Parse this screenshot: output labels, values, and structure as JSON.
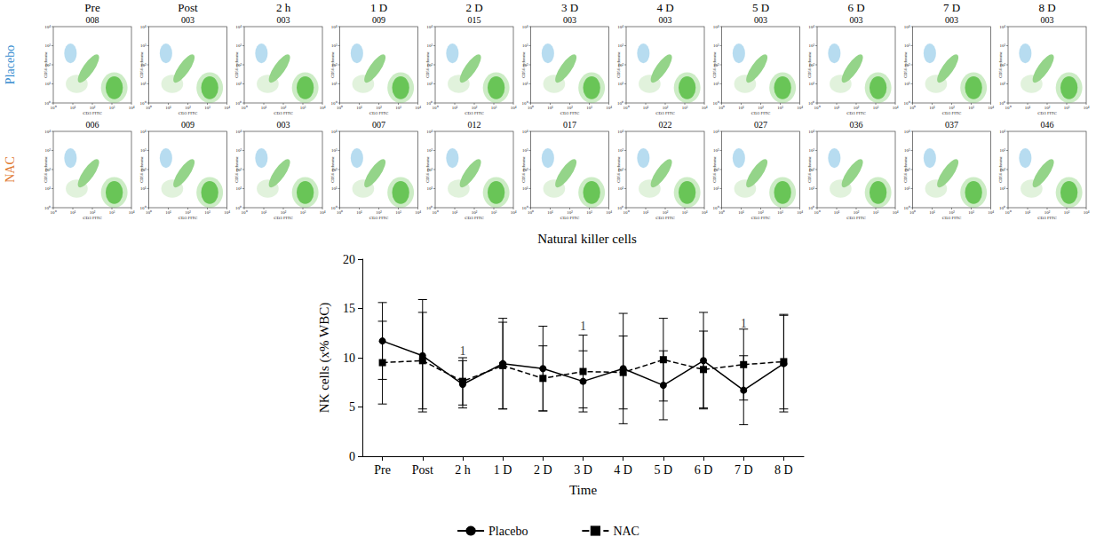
{
  "flow_panels": {
    "columns": [
      "Pre",
      "Post",
      "2 h",
      "1 D",
      "2 D",
      "3 D",
      "4 D",
      "5 D",
      "6 D",
      "7 D",
      "8 D"
    ],
    "rows": [
      {
        "label": "Placebo",
        "color": "#3b8fd0",
        "ids": [
          "008",
          "003",
          "003",
          "009",
          "015",
          "003",
          "003",
          "003",
          "003",
          "003",
          "003"
        ]
      },
      {
        "label": "NAC",
        "color": "#e0782e",
        "ids": [
          "006",
          "009",
          "003",
          "007",
          "012",
          "017",
          "022",
          "027",
          "036",
          "037",
          "046"
        ]
      }
    ],
    "x_axis_label": "CD3 FITC",
    "y_axis_label": "CD56 cychrome",
    "tick_labels_text": [
      "10⁰",
      "10¹",
      "10²",
      "10³",
      "10⁴"
    ]
  },
  "chart_data": {
    "type": "line",
    "title": "Natural killer cells",
    "x_label": "Time",
    "y_label": "NK cells (x% WBC)",
    "categories": [
      "Pre",
      "Post",
      "2 h",
      "1 D",
      "2 D",
      "3 D",
      "4 D",
      "5 D",
      "6 D",
      "7 D",
      "8 D"
    ],
    "series": [
      {
        "name": "Placebo",
        "color": "#000000",
        "marker": "circle",
        "line_style": "solid",
        "values": [
          11.7,
          10.2,
          7.3,
          9.4,
          8.9,
          7.6,
          8.9,
          7.2,
          9.7,
          6.7,
          9.4
        ],
        "errors": [
          3.9,
          5.7,
          2.4,
          4.6,
          4.3,
          3.1,
          5.6,
          3.5,
          4.9,
          3.5,
          4.9
        ]
      },
      {
        "name": "NAC",
        "color": "#000000",
        "marker": "square",
        "line_style": "dashed",
        "values": [
          9.5,
          9.7,
          7.6,
          9.2,
          7.9,
          8.6,
          8.5,
          9.8,
          8.8,
          9.3,
          9.6
        ],
        "errors": [
          4.2,
          4.9,
          2.4,
          4.4,
          3.3,
          3.7,
          3.7,
          4.2,
          3.9,
          3.6,
          4.8
        ]
      }
    ],
    "annotations": [
      {
        "x": "2 h",
        "y": 10.7,
        "text": "1"
      },
      {
        "x": "3 D",
        "y": 13.2,
        "text": "1"
      },
      {
        "x": "7 D",
        "y": 13.5,
        "text": "1"
      }
    ],
    "ylim": [
      0,
      20
    ],
    "yticks": [
      0,
      5,
      10,
      15,
      20
    ],
    "grid": false,
    "legend": "bottom"
  }
}
